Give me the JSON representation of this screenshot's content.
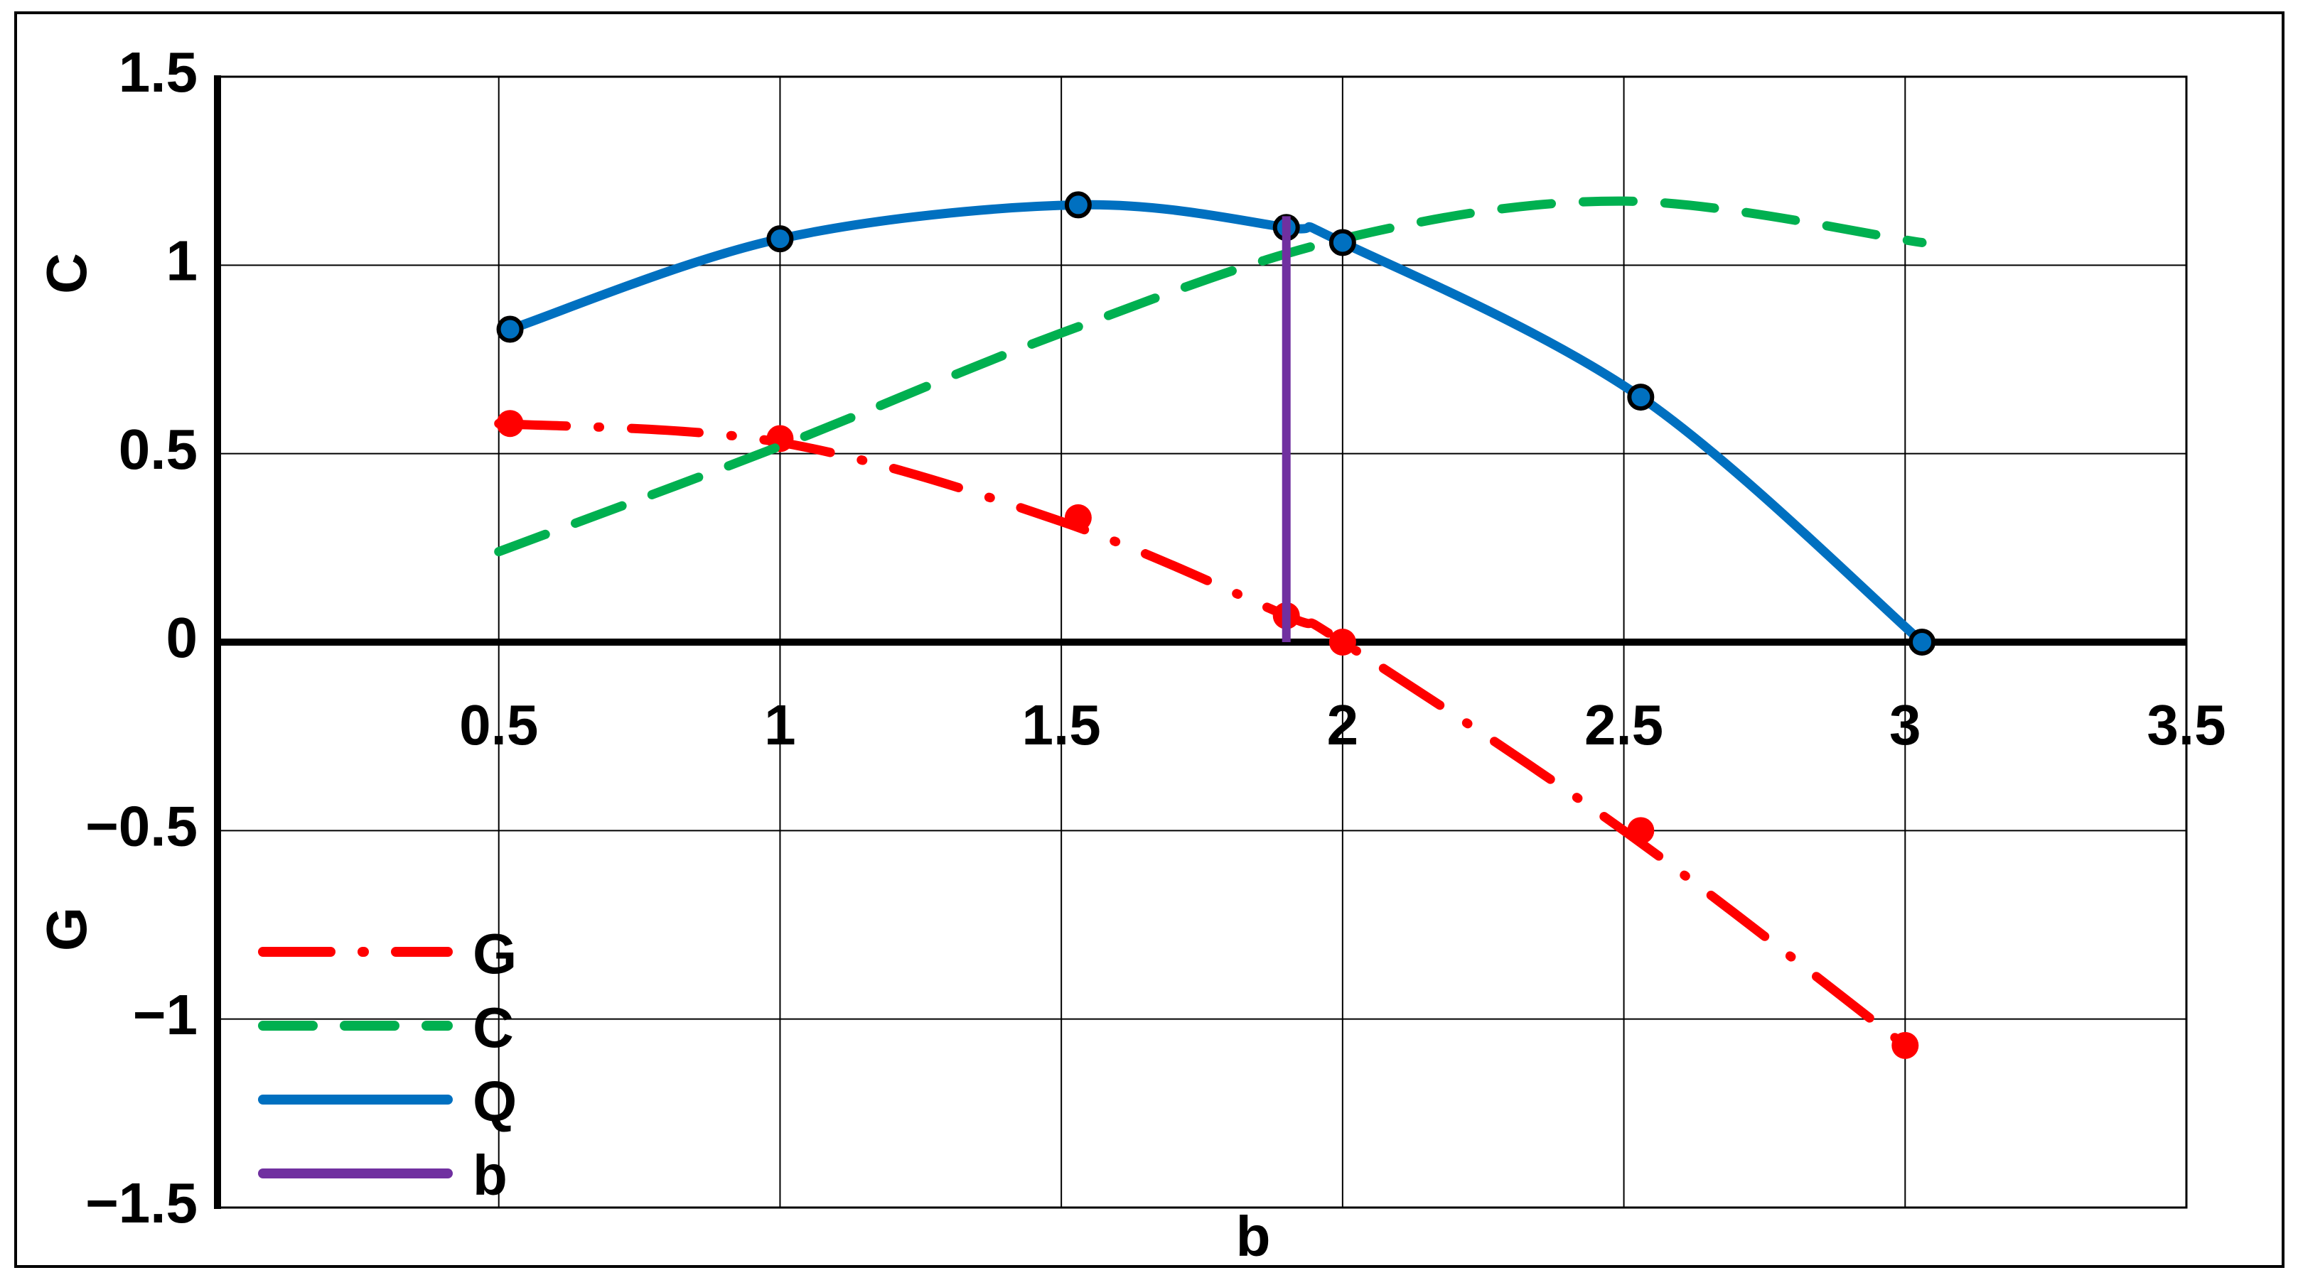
{
  "chart_data": {
    "type": "line",
    "title": "",
    "xlabel": "b",
    "ylabel_upper": "C",
    "ylabel_lower": "G",
    "xlim": [
      0,
      3.5
    ],
    "ylim": [
      -1.5,
      1.5
    ],
    "x_ticks": [
      0.5,
      1,
      1.5,
      2,
      2.5,
      3,
      3.5
    ],
    "x_tick_labels": [
      "0.5",
      "1",
      "1.5",
      "2",
      "2.5",
      "3",
      "3.5"
    ],
    "y_ticks": [
      -1.5,
      -1,
      -0.5,
      0,
      0.5,
      1,
      1.5
    ],
    "y_tick_labels": [
      "−1.5",
      "−1",
      "−0.5",
      "0",
      "0.5",
      "1",
      "1.5"
    ],
    "grid": true,
    "legend_position": "bottom-left",
    "series": [
      {
        "name": "G",
        "color": "#FF0000",
        "style": "dash-dot",
        "curve": {
          "x": [
            0.5,
            1.0,
            1.5,
            1.9,
            2.0,
            2.5,
            3.0
          ],
          "y": [
            0.58,
            0.53,
            0.32,
            0.07,
            0.0,
            -0.5,
            -1.07
          ]
        },
        "markers": {
          "x": [
            0.52,
            1.0,
            1.53,
            1.9,
            2.0,
            2.53,
            3.0
          ],
          "y": [
            0.58,
            0.54,
            0.33,
            0.07,
            0.0,
            -0.5,
            -1.07
          ]
        }
      },
      {
        "name": "C",
        "color": "#00B050",
        "style": "dashed",
        "curve": {
          "x": [
            0.5,
            1.0,
            1.5,
            2.0,
            2.5,
            3.03
          ],
          "y": [
            0.24,
            0.52,
            0.82,
            1.07,
            1.17,
            1.06
          ]
        },
        "markers": {
          "x": [],
          "y": []
        }
      },
      {
        "name": "Q",
        "color": "#0070C0",
        "style": "solid",
        "curve": {
          "x": [
            0.52,
            1.0,
            1.53,
            1.9,
            2.0,
            2.53,
            3.03
          ],
          "y": [
            0.83,
            1.07,
            1.16,
            1.1,
            1.06,
            0.65,
            0.0
          ]
        },
        "markers": {
          "x": [
            0.52,
            1.0,
            1.53,
            1.9,
            2.0,
            2.53,
            3.03
          ],
          "y": [
            0.83,
            1.07,
            1.16,
            1.1,
            1.06,
            0.65,
            0.0
          ]
        }
      },
      {
        "name": "b",
        "color": "#7030A0",
        "style": "solid",
        "curve": {
          "x": [
            1.9,
            1.9
          ],
          "y": [
            0.0,
            1.13
          ]
        },
        "markers": {
          "x": [],
          "y": []
        }
      }
    ]
  }
}
